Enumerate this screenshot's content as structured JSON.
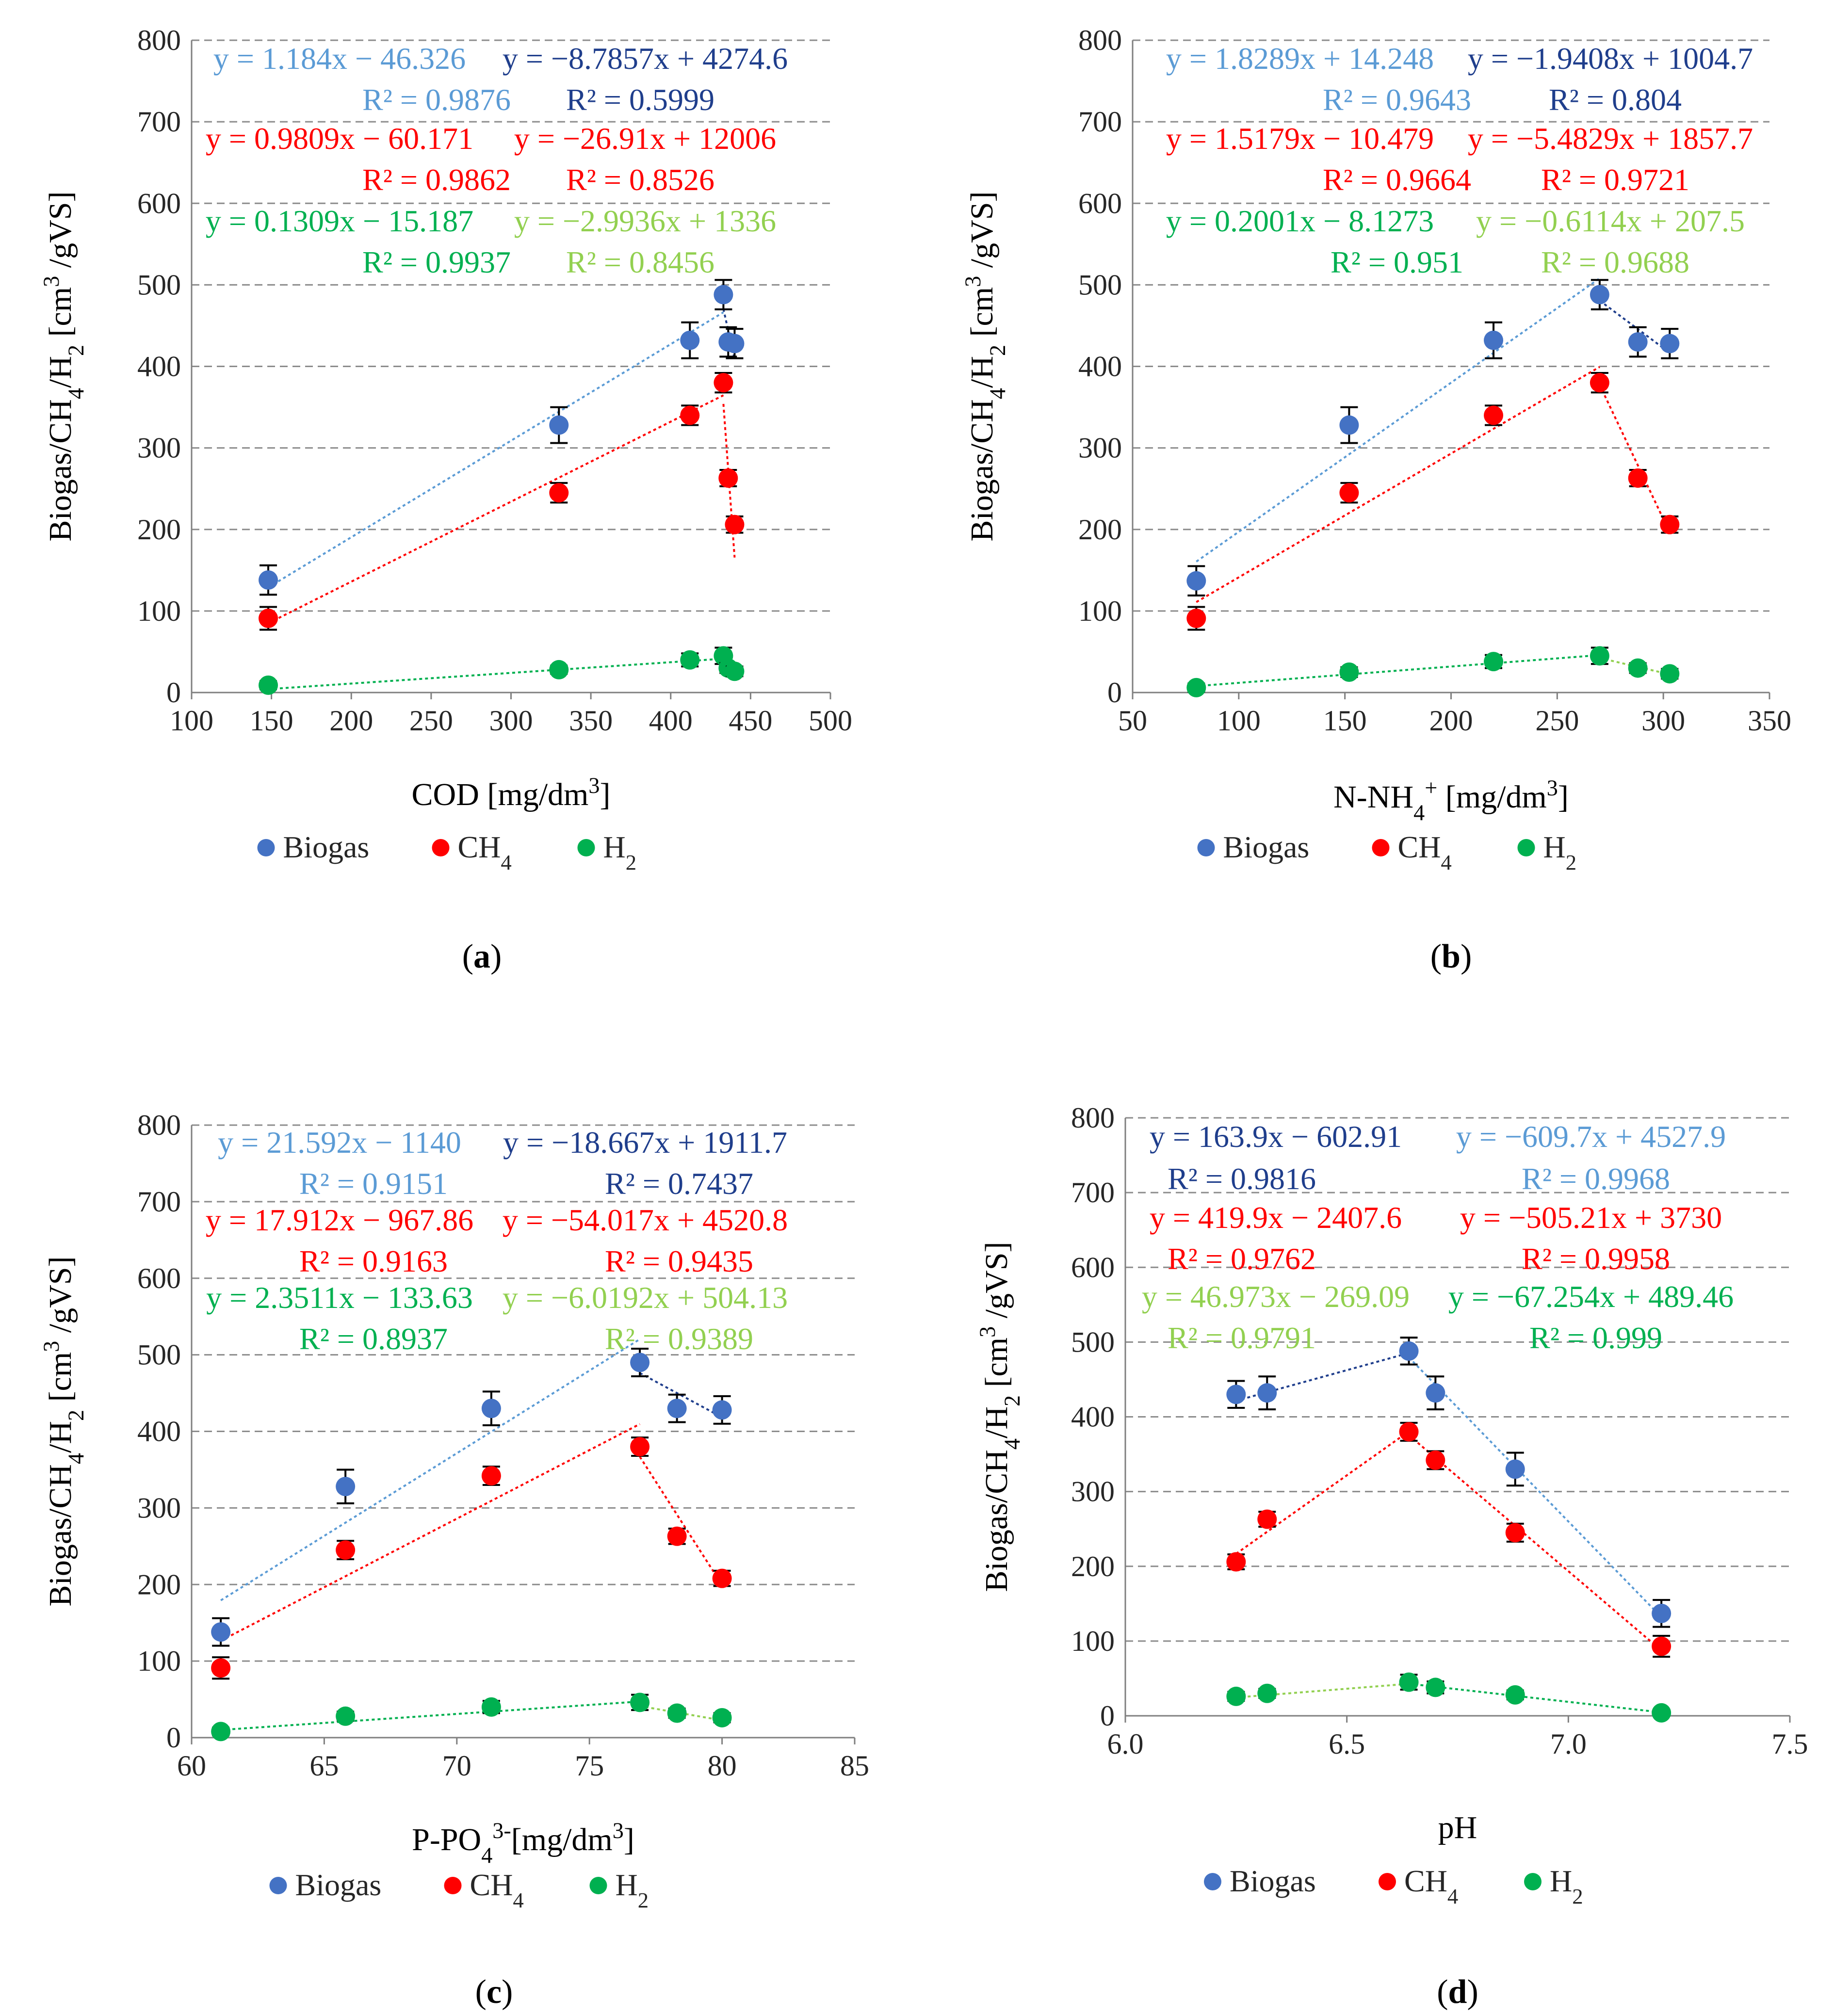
{
  "colors": {
    "biogas": "#4472C4",
    "ch4": "#FF0000",
    "h2": "#00B050",
    "trend_biogas_up": "#5B9BD5",
    "trend_biogas_down": "#1F3E8C",
    "trend_ch4": "#FF0000",
    "trend_h2_up": "#00B050",
    "trend_h2_down": "#92D050"
  },
  "chart_data": [
    {
      "type": "scatter",
      "panel": "a",
      "panel_label": "(a)",
      "xlabel": "COD [mg/dm3]",
      "ylabel": "Biogas/CH4/H2 [cm3 /gVS]",
      "xlim": [
        100,
        500
      ],
      "ylim": [
        0,
        800
      ],
      "xticks": [
        100,
        150,
        200,
        250,
        300,
        350,
        400,
        450,
        500
      ],
      "yticks": [
        0,
        100,
        200,
        300,
        400,
        500,
        600,
        700,
        800
      ],
      "xtick_labels": [
        "100",
        "150",
        "200",
        "250",
        "300",
        "350",
        "400",
        "450",
        "500"
      ],
      "ytick_labels": [
        "0",
        "100",
        "200",
        "300",
        "400",
        "500",
        "600",
        "700",
        "800"
      ],
      "legend": [
        "Biogas",
        "CH4",
        "H2"
      ],
      "series": [
        {
          "name": "Biogas",
          "x": [
            148,
            330,
            412,
            433,
            436,
            440
          ],
          "y": [
            138,
            328,
            432,
            488,
            430,
            428
          ],
          "err": [
            18,
            22,
            22,
            18,
            18,
            18
          ]
        },
        {
          "name": "CH4",
          "x": [
            148,
            330,
            412,
            433,
            436,
            440
          ],
          "y": [
            91,
            245,
            340,
            380,
            263,
            206
          ],
          "err": [
            14,
            12,
            12,
            12,
            10,
            10
          ]
        },
        {
          "name": "H2",
          "x": [
            148,
            330,
            412,
            433,
            436,
            440
          ],
          "y": [
            9,
            28,
            40,
            45,
            30,
            26
          ],
          "err": [
            5,
            5,
            8,
            10,
            6,
            6
          ]
        }
      ],
      "trendlines": [
        {
          "series": "Biogas",
          "segment": "rising",
          "x_range": [
            148,
            433
          ],
          "slope": 1.184,
          "intercept": -46.326,
          "equation": "y = 1.184x − 46.326",
          "r2": "R² = 0.9876"
        },
        {
          "series": "Biogas",
          "segment": "falling",
          "x_range": [
            433,
            440
          ],
          "slope": -8.7857,
          "intercept": 4274.6,
          "equation": "y = −8.7857x + 4274.6",
          "r2": "R² = 0.5999"
        },
        {
          "series": "CH4",
          "segment": "rising",
          "x_range": [
            148,
            433
          ],
          "slope": 0.9809,
          "intercept": -60.171,
          "equation": "y = 0.9809x − 60.171",
          "r2": "R² = 0.9862"
        },
        {
          "series": "CH4",
          "segment": "falling",
          "x_range": [
            433,
            440
          ],
          "slope": -26.91,
          "intercept": 12006,
          "equation": "y = −26.91x + 12006",
          "r2": "R² = 0.8526"
        },
        {
          "series": "H2",
          "segment": "rising",
          "x_range": [
            148,
            433
          ],
          "slope": 0.1309,
          "intercept": -15.187,
          "equation": "y = 0.1309x − 15.187",
          "r2": "R² = 0.9937"
        },
        {
          "series": "H2",
          "segment": "falling",
          "x_range": [
            433,
            440
          ],
          "slope": -2.9936,
          "intercept": 1336,
          "equation": "y = −2.9936x + 1336",
          "r2": "R² = 0.8456"
        }
      ]
    },
    {
      "type": "scatter",
      "panel": "b",
      "panel_label": "(b)",
      "xlabel": "N-NH4+ [mg/dm3]",
      "ylabel": "Biogas/CH4/H2 [cm3 /gVS]",
      "xlim": [
        50,
        350
      ],
      "ylim": [
        0,
        800
      ],
      "xticks": [
        50,
        100,
        150,
        200,
        250,
        300,
        350
      ],
      "yticks": [
        0,
        100,
        200,
        300,
        400,
        500,
        600,
        700,
        800
      ],
      "xtick_labels": [
        "50",
        "100",
        "150",
        "200",
        "250",
        "300",
        "350"
      ],
      "ytick_labels": [
        "0",
        "100",
        "200",
        "300",
        "400",
        "500",
        "600",
        "700",
        "800"
      ],
      "legend": [
        "Biogas",
        "CH4",
        "H2"
      ],
      "series": [
        {
          "name": "Biogas",
          "x": [
            80,
            152,
            220,
            270,
            288,
            303
          ],
          "y": [
            137,
            328,
            432,
            488,
            430,
            428
          ],
          "err": [
            18,
            22,
            22,
            18,
            18,
            18
          ]
        },
        {
          "name": "CH4",
          "x": [
            80,
            152,
            220,
            270,
            288,
            303
          ],
          "y": [
            91,
            245,
            340,
            380,
            263,
            206
          ],
          "err": [
            14,
            12,
            12,
            12,
            10,
            10
          ]
        },
        {
          "name": "H2",
          "x": [
            80,
            152,
            220,
            270,
            288,
            303
          ],
          "y": [
            6,
            25,
            38,
            45,
            30,
            23
          ],
          "err": [
            5,
            6,
            8,
            10,
            6,
            6
          ]
        }
      ],
      "trendlines": [
        {
          "series": "Biogas",
          "segment": "rising",
          "x_range": [
            80,
            270
          ],
          "slope": 1.8289,
          "intercept": 14.248,
          "equation": "y = 1.8289x + 14.248",
          "r2": "R² = 0.9643"
        },
        {
          "series": "Biogas",
          "segment": "falling",
          "x_range": [
            270,
            303
          ],
          "slope": -1.9408,
          "intercept": 1004.7,
          "equation": "y = −1.9408x + 1004.7",
          "r2": "R² = 0.804"
        },
        {
          "series": "CH4",
          "segment": "rising",
          "x_range": [
            80,
            270
          ],
          "slope": 1.5179,
          "intercept": -10.479,
          "equation": "y = 1.5179x − 10.479",
          "r2": "R² = 0.9664"
        },
        {
          "series": "CH4",
          "segment": "falling",
          "x_range": [
            270,
            303
          ],
          "slope": -5.4829,
          "intercept": 1857.7,
          "equation": "y = −5.4829x + 1857.7",
          "r2": "R² = 0.9721"
        },
        {
          "series": "H2",
          "segment": "rising",
          "x_range": [
            80,
            270
          ],
          "slope": 0.2001,
          "intercept": -8.1273,
          "equation": "y = 0.2001x − 8.1273",
          "r2": "R² = 0.951"
        },
        {
          "series": "H2",
          "segment": "falling",
          "x_range": [
            270,
            303
          ],
          "slope": -0.6114,
          "intercept": 207.5,
          "equation": "y = −0.6114x + 207.5",
          "r2": "R² = 0.9688"
        }
      ]
    },
    {
      "type": "scatter",
      "panel": "c",
      "panel_label": "(c)",
      "xlabel": "P-PO43-[mg/dm3]",
      "ylabel": "Biogas/CH4/H2 [cm3 /gVS]",
      "xlim": [
        60,
        85
      ],
      "ylim": [
        0,
        800
      ],
      "xticks": [
        60,
        65,
        70,
        75,
        80,
        85
      ],
      "yticks": [
        0,
        100,
        200,
        300,
        400,
        500,
        600,
        700,
        800
      ],
      "xtick_labels": [
        "60",
        "65",
        "70",
        "75",
        "80",
        "85"
      ],
      "ytick_labels": [
        "0",
        "100",
        "200",
        "300",
        "400",
        "500",
        "600",
        "700",
        "800"
      ],
      "legend": [
        "Biogas",
        "CH4",
        "H2"
      ],
      "series": [
        {
          "name": "Biogas",
          "x": [
            61.1,
            65.8,
            71.3,
            76.9,
            78.3,
            80.0
          ],
          "y": [
            138,
            328,
            430,
            490,
            430,
            428
          ],
          "err": [
            18,
            22,
            22,
            18,
            18,
            18
          ]
        },
        {
          "name": "CH4",
          "x": [
            61.1,
            65.8,
            71.3,
            76.9,
            78.3,
            80.0
          ],
          "y": [
            91,
            245,
            342,
            380,
            263,
            208
          ],
          "err": [
            14,
            12,
            12,
            12,
            10,
            10
          ]
        },
        {
          "name": "H2",
          "x": [
            61.1,
            65.8,
            71.3,
            76.9,
            78.3,
            80.0
          ],
          "y": [
            8,
            28,
            40,
            46,
            32,
            26
          ],
          "err": [
            5,
            6,
            8,
            10,
            6,
            6
          ]
        }
      ],
      "trendlines": [
        {
          "series": "Biogas",
          "segment": "rising",
          "x_range": [
            61.1,
            76.9
          ],
          "slope": 21.592,
          "intercept": -1140,
          "equation": "y = 21.592x − 1140",
          "r2": "R² = 0.9151"
        },
        {
          "series": "Biogas",
          "segment": "falling",
          "x_range": [
            76.9,
            80.0
          ],
          "slope": -18.667,
          "intercept": 1911.7,
          "equation": "y = −18.667x + 1911.7",
          "r2": "R² = 0.7437"
        },
        {
          "series": "CH4",
          "segment": "rising",
          "x_range": [
            61.1,
            76.9
          ],
          "slope": 17.912,
          "intercept": -967.86,
          "equation": "y = 17.912x − 967.86",
          "r2": "R² = 0.9163"
        },
        {
          "series": "CH4",
          "segment": "falling",
          "x_range": [
            76.9,
            80.0
          ],
          "slope": -54.017,
          "intercept": 4520.8,
          "equation": "y = −54.017x + 4520.8",
          "r2": "R² = 0.9435"
        },
        {
          "series": "H2",
          "segment": "rising",
          "x_range": [
            61.1,
            76.9
          ],
          "slope": 2.3511,
          "intercept": -133.63,
          "equation": "y = 2.3511x − 133.63",
          "r2": "R² = 0.8937"
        },
        {
          "series": "H2",
          "segment": "falling",
          "x_range": [
            76.9,
            80.0
          ],
          "slope": -6.0192,
          "intercept": 504.13,
          "equation": "y = −6.0192x + 504.13",
          "r2": "R² = 0.9389"
        }
      ]
    },
    {
      "type": "scatter",
      "panel": "d",
      "panel_label": "(d)",
      "xlabel": "pH",
      "ylabel": "Biogas/CH4/H2 [cm3 /gVS]",
      "xlim": [
        6.0,
        7.5
      ],
      "ylim": [
        0,
        800
      ],
      "xticks": [
        6.0,
        6.5,
        7.0,
        7.5
      ],
      "yticks": [
        0,
        100,
        200,
        300,
        400,
        500,
        600,
        700,
        800
      ],
      "xtick_labels": [
        "6.0",
        "6.5",
        "7.0",
        "7.5"
      ],
      "ytick_labels": [
        "0",
        "100",
        "200",
        "300",
        "400",
        "500",
        "600",
        "700",
        "800"
      ],
      "legend": [
        "Biogas",
        "CH4",
        "H2"
      ],
      "series": [
        {
          "name": "Biogas",
          "x": [
            6.25,
            6.32,
            6.64,
            6.7,
            6.88,
            7.21
          ],
          "y": [
            430,
            432,
            488,
            432,
            330,
            137
          ],
          "err": [
            18,
            22,
            18,
            22,
            22,
            18
          ]
        },
        {
          "name": "CH4",
          "x": [
            6.25,
            6.32,
            6.64,
            6.7,
            6.88,
            7.21
          ],
          "y": [
            206,
            263,
            380,
            342,
            245,
            93
          ],
          "err": [
            10,
            10,
            12,
            12,
            12,
            14
          ]
        },
        {
          "name": "H2",
          "x": [
            6.25,
            6.32,
            6.64,
            6.7,
            6.88,
            7.21
          ],
          "y": [
            26,
            30,
            45,
            38,
            28,
            4
          ],
          "err": [
            6,
            6,
            10,
            8,
            6,
            4
          ]
        }
      ],
      "trendlines": [
        {
          "series": "Biogas",
          "segment": "rising",
          "x_range": [
            6.25,
            6.64
          ],
          "slope": 163.9,
          "intercept": -602.91,
          "equation": "y = 163.9x − 602.91",
          "r2": "R² = 0.9816"
        },
        {
          "series": "Biogas",
          "segment": "falling",
          "x_range": [
            6.64,
            7.21
          ],
          "slope": -609.7,
          "intercept": 4527.9,
          "equation": "y = −609.7x + 4527.9",
          "r2": "R² = 0.9968"
        },
        {
          "series": "CH4",
          "segment": "rising",
          "x_range": [
            6.25,
            6.64
          ],
          "slope": 419.9,
          "intercept": -2407.6,
          "equation": "y = 419.9x − 2407.6",
          "r2": "R² = 0.9762"
        },
        {
          "series": "CH4",
          "segment": "falling",
          "x_range": [
            6.64,
            7.21
          ],
          "slope": -505.21,
          "intercept": 3730,
          "equation": "y = −505.21x + 3730",
          "r2": "R² = 0.9958"
        },
        {
          "series": "H2",
          "segment": "rising",
          "x_range": [
            6.25,
            6.64
          ],
          "slope": 46.973,
          "intercept": -269.09,
          "equation": "y = 46.973x − 269.09",
          "r2": "R² = 0.9791"
        },
        {
          "series": "H2",
          "segment": "falling",
          "x_range": [
            6.64,
            7.21
          ],
          "slope": -67.254,
          "intercept": 489.46,
          "equation": "y = −67.254x + 489.46",
          "r2": "R² = 0.999"
        }
      ]
    }
  ]
}
